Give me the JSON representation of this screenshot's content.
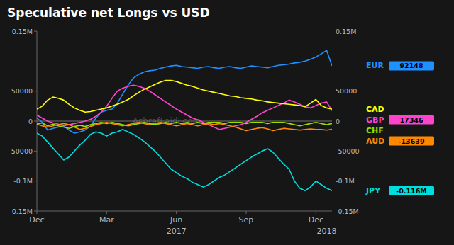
{
  "chart_data": {
    "type": "line",
    "title": "Speculative net Longs vs USD",
    "categories": [
      "Dec",
      null,
      null,
      null,
      null,
      null,
      null,
      null,
      null,
      null,
      null,
      null,
      null,
      "Mar",
      null,
      null,
      null,
      null,
      null,
      null,
      null,
      null,
      null,
      null,
      null,
      null,
      "Jun",
      null,
      null,
      null,
      null,
      null,
      null,
      null,
      null,
      null,
      null,
      null,
      null,
      "Sep",
      null,
      null,
      null,
      null,
      null,
      null,
      null,
      null,
      null,
      null,
      null,
      null,
      "Dec",
      null,
      null,
      null
    ],
    "ylim": [
      -150000,
      150000
    ],
    "yticks": [
      {
        "value": -150000,
        "label": "-0.15M"
      },
      {
        "value": -100000,
        "label": "-0.1M"
      },
      -50000,
      0,
      50000,
      {
        "value": 150000,
        "label": "0.15M"
      }
    ],
    "grid": false,
    "legend": "right",
    "data_labels": true,
    "annotations": [
      {
        "text": "2017",
        "x": 26
      },
      {
        "text": "2018",
        "x": 54
      },
      {
        "text": "AshrafLaidi.com"
      }
    ],
    "series": [
      {
        "name": "EUR",
        "color": "#1e90ff",
        "values": [
          5000,
          -2000,
          -15000,
          -12000,
          -10000,
          -8000,
          -15000,
          -20000,
          -18000,
          -15000,
          -8000,
          5000,
          15000,
          18000,
          20000,
          30000,
          45000,
          60000,
          72000,
          78000,
          82000,
          84000,
          85000,
          88000,
          90000,
          92000,
          93000,
          91000,
          90000,
          89000,
          88000,
          90000,
          91000,
          89000,
          88000,
          90000,
          91000,
          89000,
          88000,
          90000,
          92000,
          91000,
          90000,
          89000,
          91000,
          93000,
          94000,
          95000,
          97000,
          98000,
          100000,
          103000,
          107000,
          112000,
          118000,
          92148
        ],
        "value_labels": [
          null,
          null,
          null,
          null,
          null,
          null,
          null,
          null,
          null,
          null,
          null,
          null,
          null,
          null,
          null,
          null,
          null,
          null,
          null,
          null,
          null,
          null,
          null,
          null,
          null,
          null,
          null,
          null,
          null,
          null,
          null,
          null,
          null,
          null,
          null,
          null,
          null,
          null,
          null,
          null,
          null,
          null,
          null,
          null,
          null,
          null,
          null,
          null,
          null,
          null,
          null,
          null,
          null,
          null,
          null,
          "92148"
        ]
      },
      {
        "name": "GBP",
        "color": "#ff44cc",
        "values": [
          10000,
          5000,
          0,
          -3000,
          -5000,
          -8000,
          -6000,
          -4000,
          -2000,
          0,
          3000,
          8000,
          15000,
          25000,
          38000,
          50000,
          55000,
          58000,
          60000,
          58000,
          55000,
          50000,
          44000,
          38000,
          32000,
          26000,
          20000,
          15000,
          10000,
          5000,
          2000,
          -2000,
          -6000,
          -10000,
          -14000,
          -12000,
          -10000,
          -8000,
          -6000,
          -2000,
          3000,
          8000,
          14000,
          18000,
          22000,
          26000,
          30000,
          35000,
          32000,
          28000,
          24000,
          22000,
          26000,
          30000,
          32000,
          17346
        ],
        "value_labels": [
          null,
          null,
          null,
          null,
          null,
          null,
          null,
          null,
          null,
          null,
          null,
          null,
          null,
          null,
          null,
          null,
          null,
          null,
          null,
          null,
          null,
          null,
          null,
          null,
          null,
          null,
          null,
          null,
          null,
          null,
          null,
          null,
          null,
          null,
          null,
          null,
          null,
          null,
          null,
          null,
          null,
          null,
          null,
          null,
          null,
          null,
          null,
          null,
          null,
          null,
          null,
          null,
          null,
          null,
          null,
          "17346"
        ]
      },
      {
        "name": "CAD",
        "color": "#ffff00",
        "values": [
          20000,
          25000,
          35000,
          40000,
          38000,
          35000,
          28000,
          22000,
          18000,
          15000,
          16000,
          18000,
          20000,
          22000,
          25000,
          28000,
          32000,
          36000,
          42000,
          48000,
          53000,
          57000,
          61000,
          65000,
          68000,
          68000,
          66000,
          63000,
          60000,
          58000,
          55000,
          52000,
          50000,
          48000,
          46000,
          44000,
          42000,
          41000,
          39000,
          38000,
          37000,
          35000,
          34000,
          32000,
          31000,
          30000,
          29000,
          28000,
          27000,
          26000,
          24000,
          30000,
          36000,
          26000,
          22000,
          20000
        ]
      },
      {
        "name": "AUD",
        "color": "#ff8800",
        "values": [
          -5000,
          -8000,
          -10000,
          -8000,
          -6000,
          -4000,
          -6000,
          -10000,
          -14000,
          -12000,
          -9000,
          -6000,
          -4000,
          -2000,
          -4000,
          -6000,
          -8000,
          -6000,
          -4000,
          -2000,
          -4000,
          -6000,
          -4000,
          -2000,
          -4000,
          -6000,
          -8000,
          -6000,
          -4000,
          -6000,
          -8000,
          -6000,
          -4000,
          -6000,
          -4000,
          -6000,
          -8000,
          -10000,
          -13000,
          -16000,
          -14000,
          -12000,
          -11000,
          -13000,
          -16000,
          -14000,
          -12000,
          -13000,
          -14000,
          -15000,
          -14000,
          -13000,
          -14000,
          -14000,
          -15000,
          -13639
        ],
        "value_labels": [
          null,
          null,
          null,
          null,
          null,
          null,
          null,
          null,
          null,
          null,
          null,
          null,
          null,
          null,
          null,
          null,
          null,
          null,
          null,
          null,
          null,
          null,
          null,
          null,
          null,
          null,
          null,
          null,
          null,
          null,
          null,
          null,
          null,
          null,
          null,
          null,
          null,
          null,
          null,
          null,
          null,
          null,
          null,
          null,
          null,
          null,
          null,
          null,
          null,
          null,
          null,
          null,
          null,
          null,
          null,
          "-13639"
        ]
      },
      {
        "name": "CHF",
        "color": "#99dd00",
        "values": [
          -5000,
          -3000,
          -8000,
          -5000,
          -8000,
          -10000,
          -12000,
          -9000,
          -7000,
          -9000,
          -6000,
          -4000,
          -2000,
          -4000,
          -2000,
          -4000,
          -6000,
          -8000,
          -6000,
          -4000,
          -2000,
          -4000,
          -6000,
          -4000,
          -2000,
          -4000,
          -2000,
          -4000,
          -2000,
          -4000,
          -2000,
          -4000,
          -2000,
          -2000,
          -2000,
          -4000,
          -2000,
          -2000,
          -2000,
          -4000,
          -2000,
          -2000,
          -2000,
          -4000,
          -2000,
          -2000,
          -2000,
          -4000,
          -6000,
          -8000,
          -6000,
          -4000,
          -2000,
          -4000,
          -6000,
          -4000
        ]
      },
      {
        "name": "JPY",
        "color": "#00dddd",
        "values": [
          -20000,
          -25000,
          -35000,
          -45000,
          -55000,
          -65000,
          -60000,
          -50000,
          -40000,
          -32000,
          -22000,
          -18000,
          -20000,
          -25000,
          -20000,
          -18000,
          -14000,
          -18000,
          -22000,
          -28000,
          -34000,
          -42000,
          -50000,
          -60000,
          -70000,
          -80000,
          -86000,
          -92000,
          -96000,
          -102000,
          -106000,
          -110000,
          -106000,
          -100000,
          -94000,
          -90000,
          -84000,
          -78000,
          -72000,
          -66000,
          -60000,
          -55000,
          -50000,
          -46000,
          -52000,
          -62000,
          -72000,
          -80000,
          -100000,
          -112000,
          -116000,
          -110000,
          -100000,
          -106000,
          -112000,
          -116000
        ],
        "value_labels": [
          null,
          null,
          null,
          null,
          null,
          null,
          null,
          null,
          null,
          null,
          null,
          null,
          null,
          null,
          null,
          null,
          null,
          null,
          null,
          null,
          null,
          null,
          null,
          null,
          null,
          null,
          null,
          null,
          null,
          null,
          null,
          null,
          null,
          null,
          null,
          null,
          null,
          null,
          null,
          null,
          null,
          null,
          null,
          null,
          null,
          null,
          null,
          null,
          null,
          null,
          null,
          null,
          null,
          null,
          null,
          "-0.116M"
        ]
      }
    ]
  }
}
